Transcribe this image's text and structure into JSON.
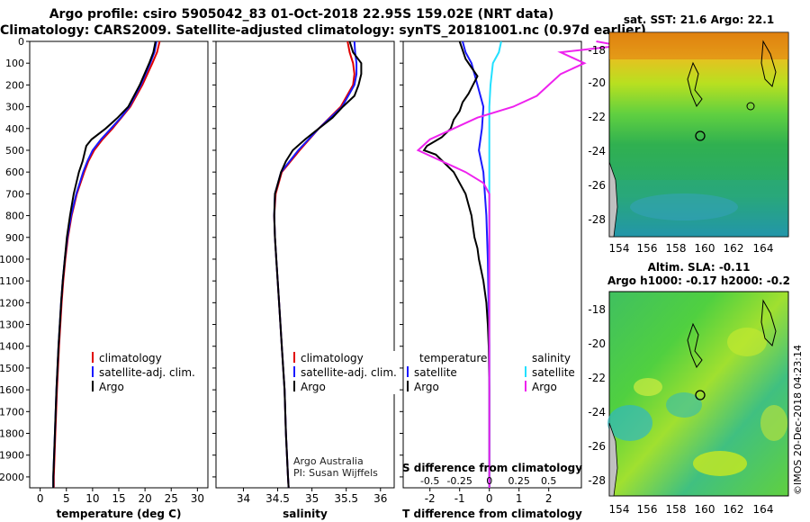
{
  "header": {
    "title_line1": "Argo profile: csiro 5905042_83 01-Oct-2018 22.95S 159.02E (NRT data)",
    "title_line2": "Climatology: CARS2009. Satellite-adjusted climatology: synTS_20181001.nc (0.97d earlier)"
  },
  "colors": {
    "climatology": "#e00000",
    "satellite": "#1a1aff",
    "argo": "#000000",
    "sat_salinity": "#22e0ff",
    "argo_salinity": "#ee22ee"
  },
  "chart_data": [
    {
      "type": "line",
      "name": "temperature",
      "xlabel": "temperature (deg C)",
      "ylabel": "",
      "xlim": [
        -2,
        32
      ],
      "ylim": [
        0,
        2050
      ],
      "xticks": [
        0,
        5,
        10,
        15,
        20,
        25,
        30
      ],
      "yticks": [
        0,
        100,
        200,
        300,
        400,
        500,
        600,
        700,
        800,
        900,
        1000,
        1100,
        1200,
        1300,
        1400,
        1500,
        1600,
        1700,
        1800,
        1900,
        2000
      ],
      "legend": [
        "climatology",
        "satellite-adj. clim.",
        "Argo"
      ],
      "series": [
        {
          "name": "climatology",
          "depth": [
            0,
            50,
            100,
            200,
            300,
            350,
            400,
            450,
            500,
            550,
            600,
            700,
            800,
            900,
            1000,
            1100,
            1200,
            1400,
            1600,
            1800,
            2000,
            2050
          ],
          "values": [
            22.8,
            22.3,
            21.4,
            19.5,
            17.2,
            15.5,
            13.8,
            11.9,
            10.3,
            9.2,
            8.4,
            7.0,
            6.0,
            5.3,
            4.8,
            4.4,
            4.1,
            3.6,
            3.2,
            2.9,
            2.6,
            2.6
          ]
        },
        {
          "name": "satellite-adj. clim.",
          "depth": [
            0,
            50,
            100,
            200,
            300,
            350,
            400,
            450,
            500,
            550,
            600,
            700,
            800,
            900,
            1000,
            1100,
            1200,
            1400,
            1600,
            1800,
            2000,
            2050
          ],
          "values": [
            22.2,
            21.8,
            21.0,
            19.2,
            17.0,
            15.4,
            13.5,
            11.6,
            10.0,
            9.0,
            8.2,
            6.9,
            5.9,
            5.2,
            4.7,
            4.3,
            4.0,
            3.5,
            3.1,
            2.8,
            2.5,
            2.5
          ]
        },
        {
          "name": "Argo",
          "depth": [
            0,
            50,
            100,
            200,
            300,
            350,
            400,
            450,
            480,
            500,
            550,
            600,
            650,
            700,
            800,
            900,
            1000,
            1100,
            1200,
            1400,
            1600,
            1800,
            2000,
            2050
          ],
          "values": [
            22.0,
            21.6,
            20.8,
            19.0,
            16.8,
            14.8,
            12.5,
            9.8,
            8.8,
            8.6,
            8.1,
            7.4,
            6.9,
            6.4,
            5.7,
            5.1,
            4.7,
            4.3,
            4.0,
            3.5,
            3.1,
            2.8,
            2.5,
            2.5
          ]
        }
      ]
    },
    {
      "type": "line",
      "name": "salinity",
      "xlabel": "salinity",
      "ylabel": "",
      "xlim": [
        33.6,
        36.2
      ],
      "ylim": [
        0,
        2050
      ],
      "xticks": [
        34,
        34.5,
        35,
        35.5,
        36
      ],
      "legend": [
        "climatology",
        "satellite-adj. clim.",
        "Argo"
      ],
      "series": [
        {
          "name": "climatology",
          "depth": [
            0,
            50,
            100,
            150,
            200,
            300,
            400,
            500,
            600,
            700,
            800,
            900,
            1000,
            1200,
            1400,
            1600,
            1800,
            2000,
            2050
          ],
          "values": [
            35.52,
            35.55,
            35.6,
            35.62,
            35.6,
            35.42,
            35.1,
            34.82,
            34.56,
            34.47,
            34.45,
            34.46,
            34.48,
            34.52,
            34.56,
            34.6,
            34.62,
            34.65,
            34.66
          ]
        },
        {
          "name": "satellite-adj. clim.",
          "depth": [
            0,
            50,
            100,
            150,
            200,
            300,
            400,
            500,
            600,
            700,
            800,
            900,
            1000,
            1200,
            1400,
            1600,
            1800,
            2000,
            2050
          ],
          "values": [
            35.62,
            35.63,
            35.65,
            35.65,
            35.62,
            35.44,
            35.1,
            34.8,
            34.55,
            34.46,
            34.45,
            34.46,
            34.48,
            34.52,
            34.56,
            34.6,
            34.62,
            34.65,
            34.66
          ]
        },
        {
          "name": "Argo",
          "depth": [
            0,
            50,
            100,
            150,
            200,
            250,
            300,
            350,
            400,
            450,
            500,
            550,
            600,
            700,
            800,
            900,
            1000,
            1200,
            1400,
            1600,
            1800,
            2000,
            2050
          ],
          "values": [
            35.55,
            35.6,
            35.72,
            35.72,
            35.68,
            35.62,
            35.45,
            35.3,
            35.1,
            34.9,
            34.72,
            34.62,
            34.55,
            34.46,
            34.45,
            34.46,
            34.48,
            34.52,
            34.56,
            34.6,
            34.62,
            34.65,
            34.66
          ]
        }
      ]
    },
    {
      "type": "line",
      "name": "difference from climatology",
      "xlabel": "T difference from climatology",
      "top_label": "S difference from climatology",
      "xlim": [
        -2.9,
        3.1
      ],
      "ylim": [
        0,
        2050
      ],
      "xticks": [
        -2,
        -1,
        0,
        1,
        2
      ],
      "top_ticks": [
        "-0.5",
        "-0.25",
        "0",
        "0.25",
        "0.5"
      ],
      "legend_left_title": "temperature",
      "legend_right_title": "salinity",
      "legend_left": [
        "satellite",
        "Argo"
      ],
      "legend_right": [
        "satellite",
        "Argo"
      ],
      "series": [
        {
          "name": "temperature satellite",
          "depth": [
            0,
            50,
            100,
            200,
            300,
            400,
            450,
            500,
            600,
            800,
            1000,
            1400,
            2000,
            2050
          ],
          "values": [
            -0.9,
            -0.8,
            -0.6,
            -0.4,
            -0.2,
            -0.25,
            -0.3,
            -0.35,
            -0.2,
            -0.1,
            -0.05,
            0,
            0,
            0
          ]
        },
        {
          "name": "temperature Argo",
          "depth": [
            0,
            40,
            80,
            120,
            160,
            200,
            240,
            280,
            320,
            360,
            400,
            440,
            480,
            500,
            520,
            560,
            600,
            650,
            700,
            750,
            800,
            850,
            900,
            950,
            1000,
            1100,
            1200,
            1300,
            1400,
            1600,
            2000,
            2050
          ],
          "values": [
            -1.0,
            -0.9,
            -0.8,
            -0.6,
            -0.4,
            -0.55,
            -0.7,
            -0.9,
            -1.0,
            -1.2,
            -1.3,
            -1.6,
            -2.1,
            -2.2,
            -1.8,
            -1.5,
            -1.2,
            -1.0,
            -0.8,
            -0.7,
            -0.6,
            -0.55,
            -0.5,
            -0.4,
            -0.35,
            -0.2,
            -0.1,
            -0.05,
            -0.02,
            0,
            0,
            0
          ]
        },
        {
          "name": "salinity satellite",
          "depth": [
            0,
            50,
            100,
            200,
            300,
            400,
            600,
            800,
            1000,
            1400,
            2000,
            2050
          ],
          "values": [
            0.1,
            0.08,
            0.03,
            0.01,
            0,
            0,
            0,
            0,
            0,
            0,
            0,
            0
          ]
        },
        {
          "name": "salinity Argo",
          "depth": [
            0,
            20,
            50,
            100,
            150,
            200,
            250,
            300,
            350,
            400,
            450,
            500,
            550,
            600,
            650,
            700,
            750,
            800,
            900,
            1000,
            1100,
            1200,
            1400,
            2000,
            2050
          ],
          "values": [
            0.9,
            1.1,
            0.6,
            0.8,
            0.6,
            0.5,
            0.4,
            0.2,
            -0.1,
            -0.3,
            -0.5,
            -0.6,
            -0.4,
            -0.2,
            -0.05,
            0,
            0,
            0,
            0,
            0,
            0,
            0,
            0,
            0,
            0
          ]
        }
      ]
    }
  ],
  "maps": {
    "sst_title": "sat. SST: 21.6 Argo: 22.1",
    "sla_title1": "Altim. SLA: -0.11",
    "sla_title2": "Argo h1000: -0.17 h2000: -0.2",
    "lat_ticks": [
      "-18",
      "-20",
      "-22",
      "-24",
      "-26",
      "-28"
    ],
    "lon_ticks": [
      "154",
      "156",
      "158",
      "160",
      "162",
      "164"
    ]
  },
  "credit": {
    "line1": "Argo Australia",
    "line2": "PI: Susan Wijffels"
  },
  "imos": "©IMOS 20-Dec-2018 04:23:14"
}
